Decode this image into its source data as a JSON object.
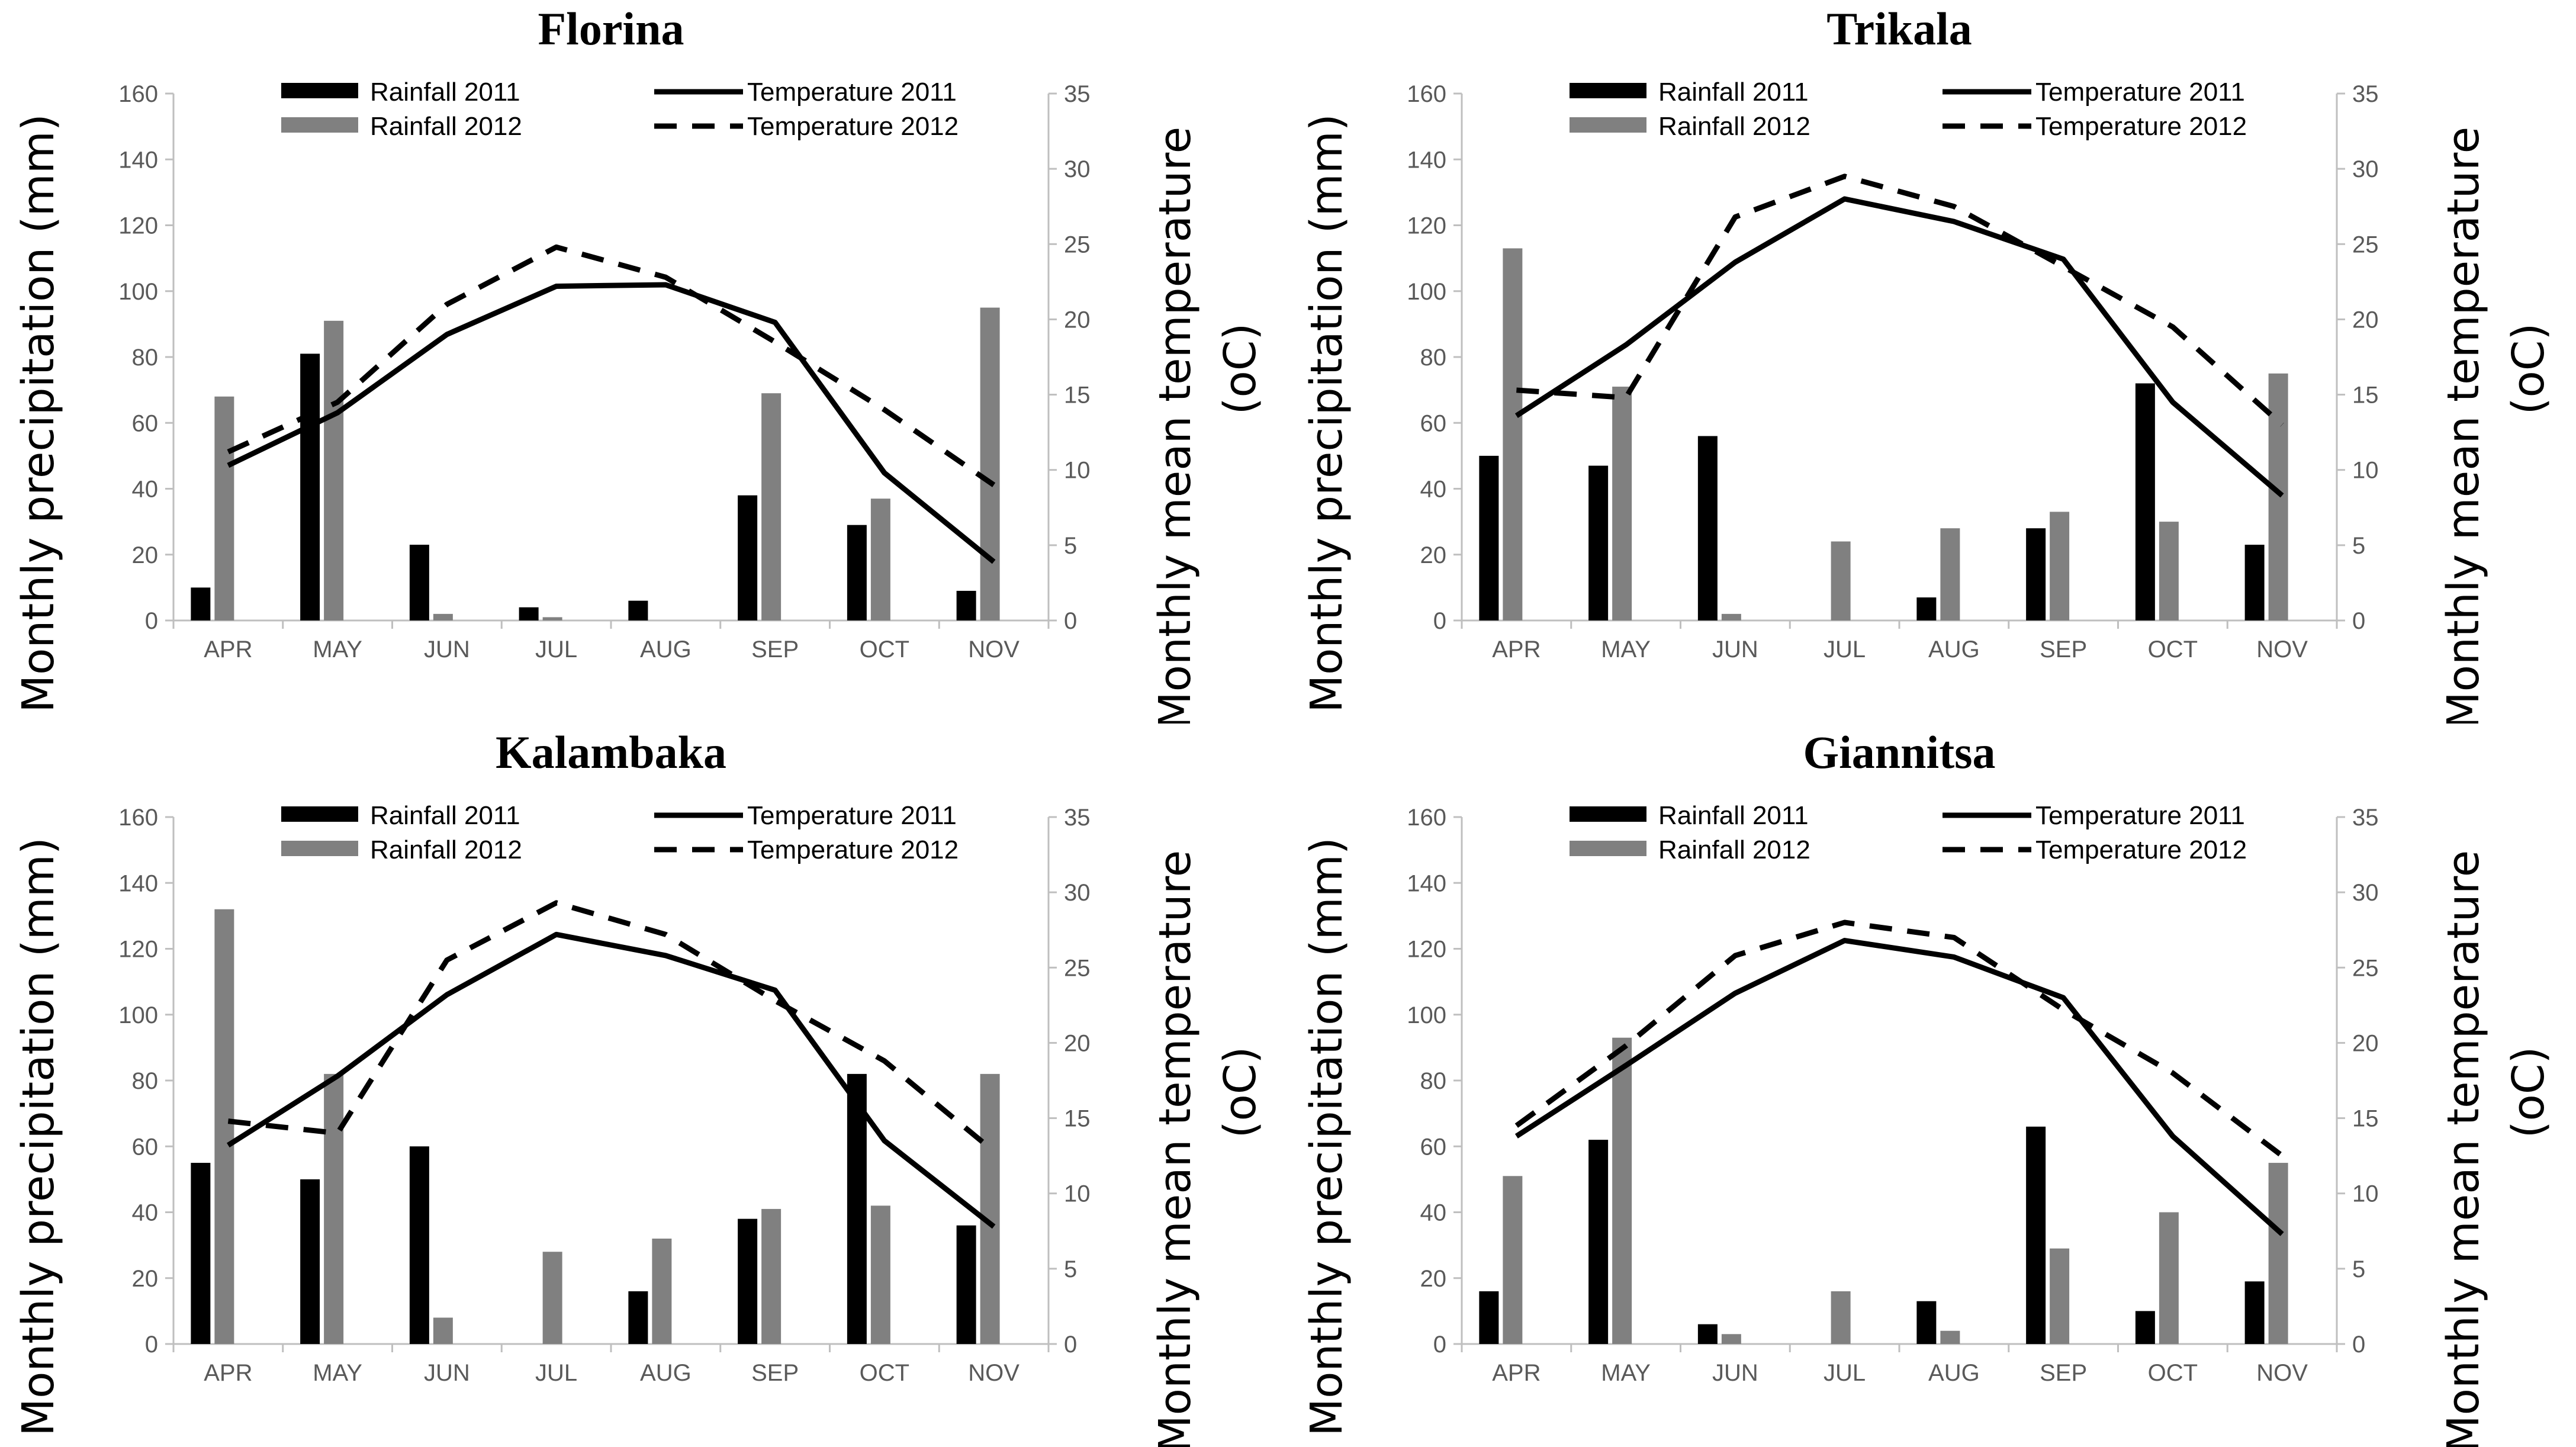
{
  "figure": {
    "shared": {
      "left_axis_title": "Monthly precipitation (mm)",
      "right_axis_title_line1": "Monthly mean temperature",
      "right_axis_title_line2": "(oC)",
      "y_left_ticks": [
        "0",
        "20",
        "40",
        "60",
        "80",
        "100",
        "120",
        "140",
        "160"
      ],
      "y_right_ticks": [
        "0",
        "5",
        "10",
        "15",
        "20",
        "25",
        "30",
        "35"
      ],
      "legend": {
        "rain2011": "Rainfall 2011",
        "rain2012": "Rainfall 2012",
        "temp2011": "Temperature 2011",
        "temp2012": "Temperature 2012"
      },
      "colors": {
        "rain2011": "#000000",
        "rain2012": "#808080",
        "temp": "#000000"
      }
    }
  },
  "chart_data": [
    {
      "type": "bar+line",
      "title": "Florina",
      "categories": [
        "APR",
        "MAY",
        "JUN",
        "JUL",
        "AUG",
        "SEP",
        "OCT",
        "NOV"
      ],
      "ylabel": "Monthly precipitation (mm)",
      "y2label": "Monthly mean temperature (oC)",
      "ylim": [
        0,
        160
      ],
      "y2lim": [
        0,
        35
      ],
      "series": [
        {
          "name": "Rainfall 2011",
          "kind": "bar",
          "axis": "left",
          "values": [
            10,
            81,
            23,
            4,
            6,
            38,
            29,
            9
          ]
        },
        {
          "name": "Rainfall 2012",
          "kind": "bar",
          "axis": "left",
          "values": [
            68,
            91,
            2,
            1,
            0,
            69,
            37,
            95
          ]
        },
        {
          "name": "Temperature 2011",
          "kind": "line",
          "axis": "right",
          "values": [
            10.3,
            13.8,
            19.0,
            22.2,
            22.3,
            19.8,
            9.8,
            3.9
          ]
        },
        {
          "name": "Temperature 2012",
          "kind": "line",
          "axis": "right",
          "values": [
            11.2,
            14.5,
            21.0,
            24.8,
            22.8,
            18.5,
            14.0,
            9.0
          ]
        }
      ]
    },
    {
      "type": "bar+line",
      "title": "Trikala",
      "categories": [
        "APR",
        "MAY",
        "JUN",
        "JUL",
        "AUG",
        "SEP",
        "OCT",
        "NOV"
      ],
      "ylabel": "Monthly precipitation (mm)",
      "y2label": "Monthly mean temperature (oC)",
      "ylim": [
        0,
        160
      ],
      "y2lim": [
        0,
        35
      ],
      "series": [
        {
          "name": "Rainfall 2011",
          "kind": "bar",
          "axis": "left",
          "values": [
            50,
            47,
            56,
            0,
            7,
            28,
            72,
            23
          ]
        },
        {
          "name": "Rainfall 2012",
          "kind": "bar",
          "axis": "left",
          "values": [
            113,
            71,
            2,
            24,
            28,
            33,
            30,
            75
          ]
        },
        {
          "name": "Temperature 2011",
          "kind": "line",
          "axis": "right",
          "values": [
            13.6,
            18.3,
            23.8,
            28.0,
            26.5,
            24.0,
            14.5,
            8.3
          ]
        },
        {
          "name": "Temperature 2012",
          "kind": "line",
          "axis": "right",
          "values": [
            15.3,
            14.8,
            26.8,
            29.5,
            27.5,
            23.5,
            19.5,
            13.0
          ]
        }
      ]
    },
    {
      "type": "bar+line",
      "title": "Kalambaka",
      "categories": [
        "APR",
        "MAY",
        "JUN",
        "JUL",
        "AUG",
        "SEP",
        "OCT",
        "NOV"
      ],
      "ylabel": "Monthly precipitation (mm)",
      "y2label": "Monthly mean temperature (oC)",
      "ylim": [
        0,
        160
      ],
      "y2lim": [
        0,
        35
      ],
      "series": [
        {
          "name": "Rainfall 2011",
          "kind": "bar",
          "axis": "left",
          "values": [
            55,
            50,
            60,
            0,
            16,
            38,
            82,
            36
          ]
        },
        {
          "name": "Rainfall 2012",
          "kind": "bar",
          "axis": "left",
          "values": [
            132,
            82,
            8,
            28,
            32,
            41,
            42,
            82
          ]
        },
        {
          "name": "Temperature 2011",
          "kind": "line",
          "axis": "right",
          "values": [
            13.2,
            17.8,
            23.2,
            27.2,
            25.8,
            23.5,
            13.5,
            7.8
          ]
        },
        {
          "name": "Temperature 2012",
          "kind": "line",
          "axis": "right",
          "values": [
            14.8,
            14.0,
            25.5,
            29.3,
            27.2,
            22.8,
            18.8,
            12.8
          ]
        }
      ]
    },
    {
      "type": "bar+line",
      "title": "Giannitsa",
      "categories": [
        "APR",
        "MAY",
        "JUN",
        "JUL",
        "AUG",
        "SEP",
        "OCT",
        "NOV"
      ],
      "ylabel": "Monthly precipitation (mm)",
      "y2label": "Monthly mean temperature (oC)",
      "ylim": [
        0,
        160
      ],
      "y2lim": [
        0,
        35
      ],
      "series": [
        {
          "name": "Rainfall 2011",
          "kind": "bar",
          "axis": "left",
          "values": [
            16,
            62,
            6,
            0,
            13,
            66,
            10,
            19
          ]
        },
        {
          "name": "Rainfall 2012",
          "kind": "bar",
          "axis": "left",
          "values": [
            51,
            93,
            3,
            16,
            4,
            29,
            40,
            55
          ]
        },
        {
          "name": "Temperature 2011",
          "kind": "line",
          "axis": "right",
          "values": [
            13.8,
            18.5,
            23.3,
            26.8,
            25.7,
            23.0,
            13.8,
            7.3
          ]
        },
        {
          "name": "Temperature 2012",
          "kind": "line",
          "axis": "right",
          "values": [
            14.5,
            19.8,
            25.8,
            28.0,
            27.0,
            22.2,
            18.0,
            12.5
          ]
        }
      ]
    }
  ]
}
